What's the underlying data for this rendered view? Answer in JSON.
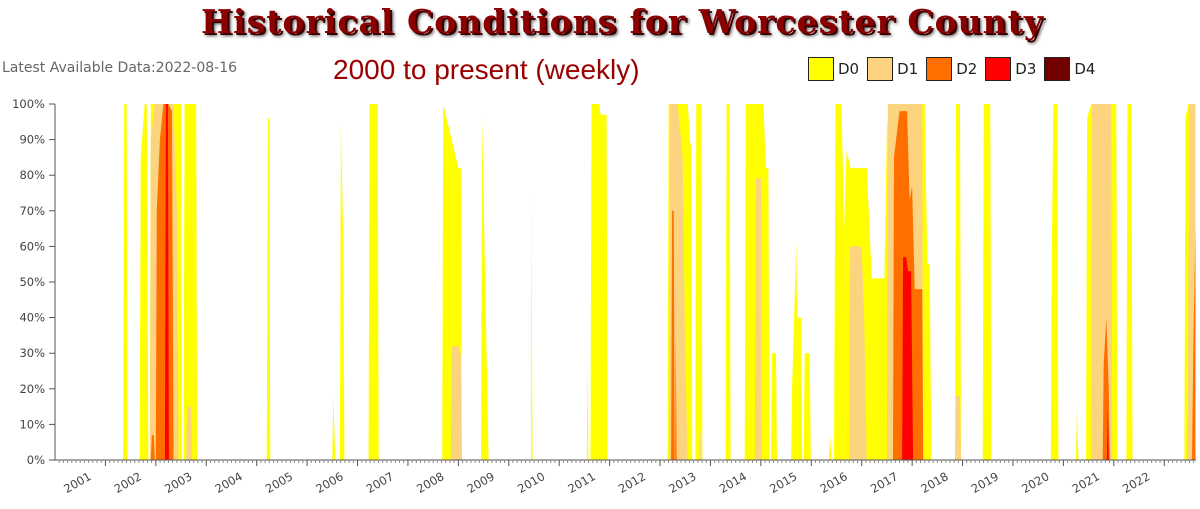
{
  "title": "Historical Conditions for Worcester County",
  "subtitle": "2000 to present (weekly)",
  "latest_label": "Latest Available Data:2022-08-16",
  "colors": {
    "D0": "#ffff00",
    "D1": "#fcd37f",
    "D2": "#ff6f00",
    "D3": "#ff0000",
    "D4": "#730000"
  },
  "chart_data": {
    "type": "area",
    "xlim": [
      2000.0,
      2022.63
    ],
    "ylim": [
      0,
      100
    ],
    "y_ticks": [
      "0%",
      "10%",
      "20%",
      "30%",
      "40%",
      "50%",
      "60%",
      "70%",
      "80%",
      "90%",
      "100%"
    ],
    "x_ticks": [
      "2001",
      "2002",
      "2003",
      "2004",
      "2005",
      "2006",
      "2007",
      "2008",
      "2009",
      "2010",
      "2011",
      "2012",
      "2013",
      "2014",
      "2015",
      "2016",
      "2017",
      "2018",
      "2019",
      "2020",
      "2021",
      "2022"
    ],
    "legend": [
      "D0",
      "D1",
      "D2",
      "D3",
      "D4"
    ],
    "grid": false,
    "legend_position": "top-right",
    "series": [
      {
        "name": "D0",
        "color": "#ffff00",
        "points": [
          [
            2001.35,
            0
          ],
          [
            2001.37,
            100
          ],
          [
            2001.42,
            100
          ],
          [
            2001.44,
            0
          ],
          [
            2001.68,
            0
          ],
          [
            2001.7,
            85
          ],
          [
            2001.78,
            100
          ],
          [
            2001.82,
            100
          ],
          [
            2001.85,
            0
          ],
          [
            2001.88,
            0
          ],
          [
            2001.9,
            100
          ],
          [
            2002.5,
            100
          ],
          [
            2002.52,
            0
          ],
          [
            2002.55,
            0
          ],
          [
            2002.57,
            100
          ],
          [
            2002.8,
            100
          ],
          [
            2002.82,
            0
          ],
          [
            2004.2,
            0
          ],
          [
            2004.22,
            96
          ],
          [
            2004.25,
            96
          ],
          [
            2004.27,
            0
          ],
          [
            2005.5,
            0
          ],
          [
            2005.52,
            18
          ],
          [
            2005.56,
            0
          ],
          [
            2005.65,
            0
          ],
          [
            2005.67,
            95
          ],
          [
            2005.72,
            60
          ],
          [
            2005.74,
            0
          ],
          [
            2006.22,
            0
          ],
          [
            2006.24,
            100
          ],
          [
            2006.4,
            100
          ],
          [
            2006.42,
            0
          ],
          [
            2007.68,
            0
          ],
          [
            2007.7,
            100
          ],
          [
            2008.0,
            82
          ],
          [
            2008.05,
            82
          ],
          [
            2008.07,
            0
          ],
          [
            2008.45,
            0
          ],
          [
            2008.47,
            96
          ],
          [
            2008.58,
            15
          ],
          [
            2008.6,
            0
          ],
          [
            2009.44,
            0
          ],
          [
            2009.45,
            75
          ],
          [
            2009.47,
            0
          ],
          [
            2010.55,
            0
          ],
          [
            2010.56,
            30
          ],
          [
            2010.58,
            0
          ],
          [
            2010.62,
            0
          ],
          [
            2010.64,
            100
          ],
          [
            2010.8,
            100
          ],
          [
            2010.82,
            97
          ],
          [
            2010.94,
            97
          ],
          [
            2010.96,
            0
          ],
          [
            2012.15,
            0
          ],
          [
            2012.17,
            100
          ],
          [
            2012.55,
            100
          ],
          [
            2012.6,
            89
          ],
          [
            2012.62,
            89
          ],
          [
            2012.64,
            0
          ],
          [
            2012.7,
            0
          ],
          [
            2012.72,
            100
          ],
          [
            2012.82,
            100
          ],
          [
            2012.84,
            0
          ],
          [
            2013.3,
            0
          ],
          [
            2013.32,
            100
          ],
          [
            2013.38,
            100
          ],
          [
            2013.4,
            0
          ],
          [
            2013.68,
            0
          ],
          [
            2013.7,
            100
          ],
          [
            2014.05,
            100
          ],
          [
            2014.1,
            82
          ],
          [
            2014.15,
            82
          ],
          [
            2014.17,
            0
          ],
          [
            2014.2,
            0
          ],
          [
            2014.22,
            30
          ],
          [
            2014.3,
            30
          ],
          [
            2014.32,
            0
          ],
          [
            2014.6,
            0
          ],
          [
            2014.62,
            20
          ],
          [
            2014.7,
            61
          ],
          [
            2014.72,
            40
          ],
          [
            2014.8,
            40
          ],
          [
            2014.82,
            0
          ],
          [
            2014.85,
            0
          ],
          [
            2014.87,
            30
          ],
          [
            2014.97,
            30
          ],
          [
            2014.99,
            0
          ],
          [
            2015.35,
            0
          ],
          [
            2015.37,
            7
          ],
          [
            2015.4,
            0
          ],
          [
            2015.45,
            0
          ],
          [
            2015.48,
            100
          ],
          [
            2015.6,
            100
          ],
          [
            2015.65,
            65
          ],
          [
            2015.7,
            87
          ],
          [
            2015.78,
            82
          ],
          [
            2015.95,
            82
          ],
          [
            2016.05,
            82
          ],
          [
            2016.1,
            82
          ],
          [
            2016.2,
            51
          ],
          [
            2016.45,
            51
          ],
          [
            2016.5,
            93
          ],
          [
            2016.55,
            100
          ],
          [
            2017.25,
            100
          ],
          [
            2017.3,
            55
          ],
          [
            2017.35,
            55
          ],
          [
            2017.38,
            0
          ],
          [
            2017.85,
            0
          ],
          [
            2017.87,
            100
          ],
          [
            2017.95,
            100
          ],
          [
            2017.97,
            0
          ],
          [
            2018.4,
            0
          ],
          [
            2018.42,
            100
          ],
          [
            2018.55,
            100
          ],
          [
            2018.57,
            0
          ],
          [
            2019.75,
            0
          ],
          [
            2019.77,
            57
          ],
          [
            2019.8,
            100
          ],
          [
            2019.88,
            100
          ],
          [
            2019.9,
            0
          ],
          [
            2020.25,
            0
          ],
          [
            2020.27,
            15
          ],
          [
            2020.3,
            0
          ],
          [
            2020.45,
            0
          ],
          [
            2020.47,
            96
          ],
          [
            2020.55,
            100
          ],
          [
            2021.05,
            100
          ],
          [
            2021.07,
            0
          ],
          [
            2021.25,
            0
          ],
          [
            2021.27,
            100
          ],
          [
            2021.35,
            100
          ],
          [
            2021.37,
            0
          ],
          [
            2022.4,
            0
          ],
          [
            2022.42,
            96
          ],
          [
            2022.48,
            100
          ],
          [
            2022.62,
            100
          ]
        ]
      },
      {
        "name": "D1",
        "color": "#fcd37f",
        "points": [
          [
            2001.88,
            0
          ],
          [
            2001.9,
            90
          ],
          [
            2001.98,
            100
          ],
          [
            2002.35,
            100
          ],
          [
            2002.42,
            70
          ],
          [
            2002.45,
            0
          ],
          [
            2002.6,
            0
          ],
          [
            2002.62,
            15
          ],
          [
            2002.7,
            15
          ],
          [
            2002.72,
            0
          ],
          [
            2007.85,
            0
          ],
          [
            2007.87,
            32
          ],
          [
            2008.0,
            32
          ],
          [
            2008.05,
            29
          ],
          [
            2008.07,
            0
          ],
          [
            2012.18,
            0
          ],
          [
            2012.2,
            100
          ],
          [
            2012.35,
            100
          ],
          [
            2012.45,
            85
          ],
          [
            2012.5,
            30
          ],
          [
            2012.55,
            0
          ],
          [
            2012.78,
            0
          ],
          [
            2012.8,
            10
          ],
          [
            2012.82,
            0
          ],
          [
            2013.88,
            0
          ],
          [
            2013.9,
            79
          ],
          [
            2014.0,
            79
          ],
          [
            2014.02,
            0
          ],
          [
            2015.75,
            0
          ],
          [
            2015.77,
            60
          ],
          [
            2016.0,
            60
          ],
          [
            2016.05,
            40
          ],
          [
            2016.1,
            0
          ],
          [
            2016.5,
            0
          ],
          [
            2016.52,
            100
          ],
          [
            2017.2,
            100
          ],
          [
            2017.22,
            0
          ],
          [
            2017.85,
            0
          ],
          [
            2017.87,
            18
          ],
          [
            2017.95,
            18
          ],
          [
            2017.97,
            0
          ],
          [
            2020.55,
            0
          ],
          [
            2020.57,
            100
          ],
          [
            2020.95,
            100
          ],
          [
            2020.97,
            0
          ],
          [
            2022.45,
            0
          ],
          [
            2022.47,
            16
          ],
          [
            2022.5,
            100
          ],
          [
            2022.62,
            100
          ]
        ]
      },
      {
        "name": "D2",
        "color": "#ff6f00",
        "points": [
          [
            2001.9,
            0
          ],
          [
            2001.92,
            7
          ],
          [
            2001.96,
            7
          ],
          [
            2001.98,
            0
          ],
          [
            2002.0,
            0
          ],
          [
            2002.02,
            70
          ],
          [
            2002.08,
            90
          ],
          [
            2002.15,
            100
          ],
          [
            2002.25,
            100
          ],
          [
            2002.32,
            98
          ],
          [
            2002.35,
            0
          ],
          [
            2012.22,
            0
          ],
          [
            2012.24,
            70
          ],
          [
            2012.27,
            70
          ],
          [
            2012.29,
            0
          ],
          [
            2012.3,
            0
          ],
          [
            2012.31,
            35
          ],
          [
            2012.33,
            0
          ],
          [
            2016.62,
            0
          ],
          [
            2016.64,
            85
          ],
          [
            2016.75,
            98
          ],
          [
            2016.9,
            98
          ],
          [
            2016.95,
            73
          ],
          [
            2017.0,
            77
          ],
          [
            2017.05,
            48
          ],
          [
            2017.2,
            48
          ],
          [
            2017.22,
            0
          ],
          [
            2020.78,
            0
          ],
          [
            2020.8,
            27
          ],
          [
            2020.85,
            40
          ],
          [
            2020.9,
            20
          ],
          [
            2020.92,
            0
          ],
          [
            2022.55,
            0
          ],
          [
            2022.58,
            35
          ],
          [
            2022.62,
            65
          ]
        ]
      },
      {
        "name": "D3",
        "color": "#ff0000",
        "points": [
          [
            2002.18,
            0
          ],
          [
            2002.2,
            100
          ],
          [
            2002.24,
            100
          ],
          [
            2002.26,
            0
          ],
          [
            2016.8,
            0
          ],
          [
            2016.82,
            57
          ],
          [
            2016.88,
            57
          ],
          [
            2016.92,
            53
          ],
          [
            2016.98,
            53
          ],
          [
            2017.02,
            0
          ],
          [
            2020.86,
            0
          ],
          [
            2020.88,
            15
          ],
          [
            2020.9,
            0
          ]
        ]
      },
      {
        "name": "D4",
        "color": "#730000",
        "points": []
      }
    ]
  }
}
